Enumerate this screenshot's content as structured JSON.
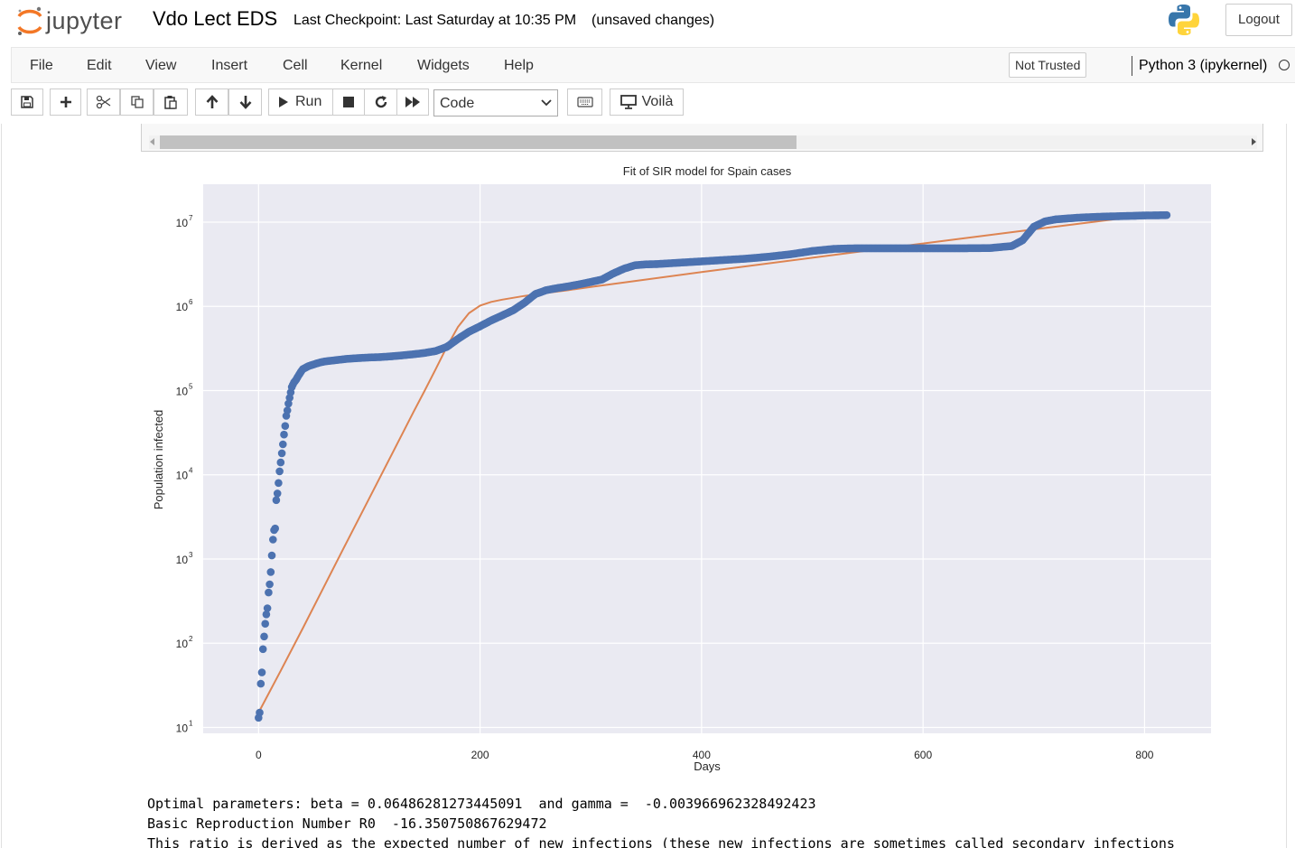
{
  "header": {
    "logo_text": "jupyter",
    "notebook_title": "Vdo Lect EDS",
    "checkpoint": "Last Checkpoint: Last Saturday at 10:35 PM",
    "unsaved": "(unsaved changes)",
    "logout_label": "Logout"
  },
  "menubar": {
    "items": [
      "File",
      "Edit",
      "View",
      "Insert",
      "Cell",
      "Kernel",
      "Widgets",
      "Help"
    ],
    "trust_label": "Not Trusted",
    "kernel_name": "Python 3 (ipykernel)"
  },
  "toolbar": {
    "run_label": "Run",
    "cell_type": "Code",
    "voila_label": "Voilà"
  },
  "output": {
    "lines": [
      "Optimal parameters: beta = 0.06486281273445091  and gamma =  -0.003966962328492423",
      "Basic Reproduction Number R0  -16.350750867629472",
      "This ratio is derived as the expected number of new infections (these new infections are sometimes called secondary infections"
    ]
  },
  "chart_data": {
    "type": "scatter",
    "title": "Fit of SIR model for Spain cases",
    "xlabel": "Days",
    "ylabel": "Population infected",
    "xlim": [
      -50,
      860
    ],
    "ylim_log10": [
      0.93,
      7.45
    ],
    "yscale": "log",
    "x_ticks": [
      0,
      200,
      400,
      600,
      800
    ],
    "y_ticks": [
      {
        "base": "10",
        "exp": "1",
        "value": 10
      },
      {
        "base": "10",
        "exp": "2",
        "value": 100
      },
      {
        "base": "10",
        "exp": "3",
        "value": 1000
      },
      {
        "base": "10",
        "exp": "4",
        "value": 10000
      },
      {
        "base": "10",
        "exp": "5",
        "value": 100000
      },
      {
        "base": "10",
        "exp": "6",
        "value": 1000000
      },
      {
        "base": "10",
        "exp": "7",
        "value": 10000000
      }
    ],
    "grid": true,
    "background": "#eaeaf2",
    "series": [
      {
        "kind": "points",
        "color": "#4c72b0",
        "x": [
          0,
          1,
          2,
          3,
          4,
          5,
          6,
          7,
          8,
          9,
          10,
          11,
          12,
          13,
          14,
          15,
          16,
          17,
          18,
          19,
          20,
          21,
          22,
          23,
          24,
          25,
          26,
          27,
          28,
          29,
          30,
          32,
          34,
          36,
          38,
          40,
          45,
          50,
          55,
          60,
          70,
          80,
          90,
          100,
          110,
          120,
          130,
          140,
          150,
          160,
          170,
          180,
          190,
          200,
          210,
          220,
          230,
          240,
          250,
          260,
          270,
          280,
          290,
          300,
          310,
          320,
          330,
          340,
          350,
          360,
          370,
          380,
          400,
          420,
          440,
          460,
          480,
          500,
          520,
          540,
          560,
          580,
          600,
          620,
          640,
          660,
          680,
          690,
          700,
          710,
          720,
          740,
          760,
          780,
          800,
          810,
          820
        ],
        "y": [
          13,
          15,
          33,
          45,
          85,
          120,
          170,
          220,
          260,
          400,
          500,
          700,
          1100,
          1700,
          2200,
          2300,
          5000,
          6000,
          8000,
          11000,
          14000,
          18000,
          23000,
          30000,
          38000,
          50000,
          58000,
          70000,
          82000,
          95000,
          110000,
          125000,
          135000,
          150000,
          165000,
          180000,
          195000,
          205000,
          215000,
          222000,
          230000,
          238000,
          243000,
          247000,
          250000,
          255000,
          262000,
          270000,
          280000,
          295000,
          330000,
          410000,
          500000,
          580000,
          680000,
          780000,
          900000,
          1100000,
          1400000,
          1560000,
          1650000,
          1730000,
          1830000,
          1950000,
          2080000,
          2450000,
          2800000,
          3080000,
          3150000,
          3180000,
          3240000,
          3300000,
          3420000,
          3550000,
          3680000,
          3880000,
          4150000,
          4540000,
          4820000,
          4900000,
          4900000,
          4900000,
          4900000,
          4900000,
          4900000,
          4920000,
          5200000,
          6100000,
          8800000,
          10200000,
          10800000,
          11300000,
          11600000,
          11800000,
          12000000,
          12050000,
          12100000
        ]
      },
      {
        "kind": "line",
        "color": "#dd8452",
        "x": [
          0,
          20,
          40,
          60,
          80,
          100,
          120,
          140,
          150,
          160,
          170,
          180,
          190,
          200,
          210,
          220,
          240,
          260,
          280,
          300,
          400,
          500,
          600,
          700,
          800,
          820
        ],
        "y": [
          15,
          47,
          151,
          496,
          1620,
          5280,
          17200,
          56000,
          100000,
          180000,
          330000,
          570000,
          830000,
          1020000,
          1130000,
          1200000,
          1330000,
          1440000,
          1560000,
          1700000,
          2550000,
          3780000,
          5580000,
          8200000,
          12000000,
          13100000
        ]
      }
    ]
  }
}
